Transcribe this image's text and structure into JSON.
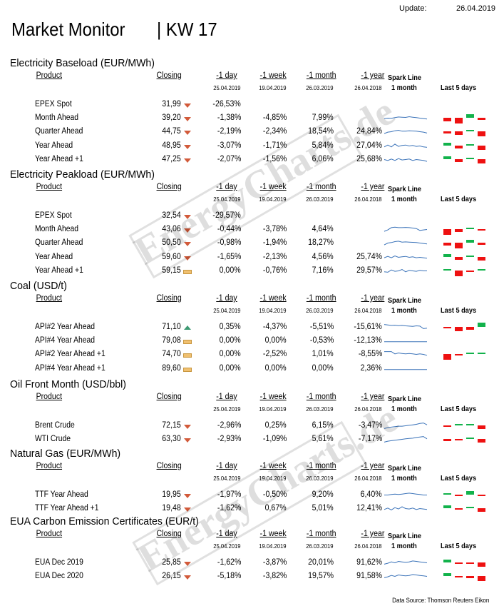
{
  "header": {
    "update_label": "Update:",
    "update_value": "26.04.2019",
    "title": "Market Monitor",
    "week": "| KW 17",
    "source": "Data Source: Thomson Reuters Eikon",
    "watermark": "EnergyCharts.de"
  },
  "colors": {
    "down": "#d25a3a",
    "up": "#3e9a73",
    "flat": "#f0c070",
    "spark": "#3b73b9",
    "bar_green": "#12b24b",
    "bar_red": "#ee1111"
  },
  "columns": {
    "product": "Product",
    "closing": "Closing",
    "day": "-1 day",
    "week": "-1 week",
    "month": "-1 month",
    "year": "-1 year",
    "spark_line": "Spark Line",
    "spark_period": "1 month",
    "last5": "Last 5  days"
  },
  "sections": [
    {
      "title": "Electricity Baseload (EUR/MWh)",
      "dates": [
        "25.04.2019",
        "19.04.2019",
        "26.03.2019",
        "26.04.2018"
      ],
      "rows": [
        {
          "product": "EPEX Spot",
          "closing": "31,99",
          "trend": "down",
          "day": "-26,53%",
          "week": "",
          "month": "",
          "year": "",
          "spark": null,
          "bars": []
        },
        {
          "product": "Month Ahead",
          "closing": "39,20",
          "trend": "down",
          "day": "-1,38%",
          "week": "-4,85%",
          "month": "7,99%",
          "year": "",
          "spark": [
            0.45,
            0.5,
            0.48,
            0.55,
            0.62,
            0.6,
            0.58,
            0.65,
            0.6,
            0.55,
            0.5,
            0.45,
            0.4
          ],
          "bars": [
            -0.6,
            -1,
            0.6,
            -0.3
          ]
        },
        {
          "product": "Quarter Ahead",
          "closing": "44,75",
          "trend": "down",
          "day": "-2,19%",
          "week": "-2,34%",
          "month": "18,54%",
          "year": "24,84%",
          "spark": [
            0.3,
            0.45,
            0.5,
            0.6,
            0.65,
            0.55,
            0.55,
            0.6,
            0.58,
            0.55,
            0.5,
            0.45,
            0.35
          ],
          "bars": [
            -0.3,
            -0.6,
            0.3,
            -0.8
          ]
        },
        {
          "product": "Year Ahead",
          "closing": "48,95",
          "trend": "down",
          "day": "-3,07%",
          "week": "-1,71%",
          "month": "5,84%",
          "year": "27,04%",
          "spark": [
            0.4,
            0.6,
            0.4,
            0.7,
            0.45,
            0.55,
            0.6,
            0.5,
            0.55,
            0.45,
            0.5,
            0.4,
            0.35
          ],
          "bars": [
            0.5,
            -0.6,
            0.2,
            -0.8
          ]
        },
        {
          "product": "Year  Ahead +1",
          "closing": "47,25",
          "trend": "down",
          "day": "-2,07%",
          "week": "-1,56%",
          "month": "6,06%",
          "year": "25,68%",
          "spark": [
            0.5,
            0.4,
            0.55,
            0.4,
            0.6,
            0.45,
            0.5,
            0.55,
            0.4,
            0.5,
            0.45,
            0.4,
            0.3
          ],
          "bars": [
            0.5,
            -0.5,
            0.2,
            -0.8
          ]
        }
      ]
    },
    {
      "title": "Electricity Peakload (EUR/MWh)",
      "dates": [
        "25.04.2019",
        "19.04.2019",
        "26.03.2019",
        "26.04.2018"
      ],
      "rows": [
        {
          "product": "EPEX Spot",
          "closing": "32,54",
          "trend": "down",
          "day": "-29,57%",
          "week": "",
          "month": "",
          "year": "",
          "spark": null,
          "bars": []
        },
        {
          "product": "Month Ahead",
          "closing": "43,06",
          "trend": "down",
          "day": "-0,44%",
          "week": "-3,78%",
          "month": "4,64%",
          "year": "",
          "spark": [
            0.3,
            0.45,
            0.7,
            0.75,
            0.7,
            0.7,
            0.72,
            0.7,
            0.65,
            0.6,
            0.4,
            0.45,
            0.5
          ],
          "bars": [
            -1,
            -0.5,
            0.3,
            -0.2
          ]
        },
        {
          "product": "Quarter Ahead",
          "closing": "50,50",
          "trend": "down",
          "day": "-0,98%",
          "week": "-1,94%",
          "month": "18,27%",
          "year": "",
          "spark": [
            0.3,
            0.5,
            0.55,
            0.65,
            0.7,
            0.6,
            0.62,
            0.6,
            0.58,
            0.55,
            0.5,
            0.45,
            0.4
          ],
          "bars": [
            -0.5,
            -0.9,
            0.6,
            -0.3
          ]
        },
        {
          "product": "Year Ahead",
          "closing": "59,60",
          "trend": "down",
          "day": "-1,65%",
          "week": "-2,13%",
          "month": "4,56%",
          "year": "25,74%",
          "spark": [
            0.45,
            0.6,
            0.45,
            0.65,
            0.5,
            0.55,
            0.6,
            0.5,
            0.55,
            0.45,
            0.5,
            0.45,
            0.4
          ],
          "bars": [
            0.4,
            -0.6,
            0.2,
            -0.7
          ]
        },
        {
          "product": "Year  Ahead +1",
          "closing": "59,15",
          "trend": "flat",
          "day": "0,00%",
          "week": "-0,76%",
          "month": "7,16%",
          "year": "29,57%",
          "spark": [
            0.4,
            0.35,
            0.6,
            0.45,
            0.5,
            0.65,
            0.4,
            0.55,
            0.5,
            0.45,
            0.55,
            0.5,
            0.5
          ],
          "bars": [
            0,
            -1,
            -0.2,
            0
          ]
        }
      ]
    },
    {
      "title": "Coal (USD/t)",
      "dates": [
        "25.04.2019",
        "19.04.2019",
        "26.03.2019",
        "26.04.2018"
      ],
      "rows": [
        {
          "product": "API#2 Year Ahead",
          "closing": "71,10",
          "trend": "up",
          "day": "0,35%",
          "week": "-4,37%",
          "month": "-5,51%",
          "year": "-15,61%",
          "spark": [
            0.8,
            0.75,
            0.7,
            0.72,
            0.68,
            0.7,
            0.65,
            0.62,
            0.6,
            0.65,
            0.62,
            0.35,
            0.4
          ],
          "bars": [
            -0.2,
            -0.8,
            -0.5,
            0.7
          ]
        },
        {
          "product": "API#4 Year Ahead",
          "closing": "79,08",
          "trend": "flat",
          "day": "0,00%",
          "week": "0,00%",
          "month": "-0,53%",
          "year": "-12,13%",
          "spark": [
            0.4,
            0.4,
            0.4,
            0.4,
            0.4,
            0.4,
            0.4,
            0.4,
            0.4,
            0.4,
            0.4,
            0.4,
            0.4
          ],
          "bars": []
        },
        {
          "product": "API#2 Year Ahead +1",
          "closing": "74,70",
          "trend": "flat",
          "day": "0,00%",
          "week": "-2,52%",
          "month": "1,01%",
          "year": "-8,55%",
          "spark": [
            0.8,
            0.8,
            0.8,
            0.55,
            0.65,
            0.6,
            0.55,
            0.6,
            0.55,
            0.5,
            0.55,
            0.5,
            0.4
          ],
          "bars": [
            -1,
            -0.2,
            0,
            0
          ]
        },
        {
          "product": "API#4 Year Ahead +1",
          "closing": "89,60",
          "trend": "flat",
          "day": "0,00%",
          "week": "0,00%",
          "month": "0,00%",
          "year": "2,36%",
          "spark": [
            0.4,
            0.4,
            0.4,
            0.4,
            0.4,
            0.4,
            0.4,
            0.4,
            0.4,
            0.4,
            0.4,
            0.4,
            0.4
          ],
          "bars": []
        }
      ]
    },
    {
      "title": "Oil Front Month (USD/bbl)",
      "dates": [
        "25.04.2019",
        "19.04.2019",
        "26.03.2019",
        "26.04.2018"
      ],
      "rows": [
        {
          "product": "Brent Crude",
          "closing": "72,15",
          "trend": "down",
          "day": "-2,96%",
          "week": "0,25%",
          "month": "6,15%",
          "year": "-3,47%",
          "spark": [
            0.2,
            0.3,
            0.35,
            0.4,
            0.45,
            0.45,
            0.5,
            0.55,
            0.6,
            0.65,
            0.75,
            0.8,
            0.6
          ],
          "bars": [
            -0.3,
            0.2,
            0.2,
            -0.6
          ]
        },
        {
          "product": "WTI Crude",
          "closing": "63,30",
          "trend": "down",
          "day": "-2,93%",
          "week": "-1,09%",
          "month": "5,61%",
          "year": "-7,17%",
          "spark": [
            0.2,
            0.3,
            0.35,
            0.4,
            0.45,
            0.5,
            0.55,
            0.6,
            0.62,
            0.7,
            0.75,
            0.8,
            0.55
          ],
          "bars": [
            -0.3,
            -0.2,
            0.2,
            -0.6
          ]
        }
      ]
    },
    {
      "title": "Natural Gas (EUR/MWh)",
      "dates": [
        "25.04.2019",
        "19.04.2019",
        "26.03.2019",
        "26.04.2018"
      ],
      "rows": [
        {
          "product": "TTF Year Ahead",
          "closing": "19,95",
          "trend": "down",
          "day": "-1,97%",
          "week": "-0,50%",
          "month": "9,20%",
          "year": "6,40%",
          "spark": [
            0.5,
            0.5,
            0.55,
            0.6,
            0.55,
            0.6,
            0.65,
            0.7,
            0.65,
            0.6,
            0.55,
            0.5,
            0.5
          ],
          "bars": [
            0.2,
            -0.2,
            0.6,
            -0.3
          ]
        },
        {
          "product": "TTF Year Ahead +1",
          "closing": "19,48",
          "trend": "down",
          "day": "-1,62%",
          "week": "0,67%",
          "month": "5,01%",
          "year": "12,41%",
          "spark": [
            0.4,
            0.55,
            0.35,
            0.6,
            0.45,
            0.7,
            0.5,
            0.45,
            0.55,
            0.4,
            0.5,
            0.45,
            0.4
          ],
          "bars": [
            0.5,
            -0.2,
            0.2,
            -0.6
          ]
        }
      ]
    },
    {
      "title": "EUA Carbon Emission Certificates (EUR/t)",
      "dates": [
        "25.04.2019",
        "19.04.2019",
        "26.03.2019",
        "26.04.2018"
      ],
      "rows": [
        {
          "product": "EUA Dec 2019",
          "closing": "25,85",
          "trend": "down",
          "day": "-1,62%",
          "week": "-3,87%",
          "month": "20,01%",
          "year": "91,62%",
          "spark": [
            0.35,
            0.45,
            0.6,
            0.5,
            0.65,
            0.6,
            0.55,
            0.6,
            0.7,
            0.65,
            0.6,
            0.55,
            0.5
          ],
          "bars": [
            0.5,
            -0.2,
            -0.3,
            -0.8
          ]
        },
        {
          "product": "EUA Dec 2020",
          "closing": "26,15",
          "trend": "down",
          "day": "-5,18%",
          "week": "-3,82%",
          "month": "19,57%",
          "year": "91,58%",
          "spark": [
            0.35,
            0.45,
            0.6,
            0.5,
            0.65,
            0.6,
            0.55,
            0.6,
            0.7,
            0.65,
            0.6,
            0.55,
            0.5
          ],
          "bars": [
            0.5,
            -0.2,
            -0.3,
            -0.8
          ]
        }
      ]
    }
  ]
}
